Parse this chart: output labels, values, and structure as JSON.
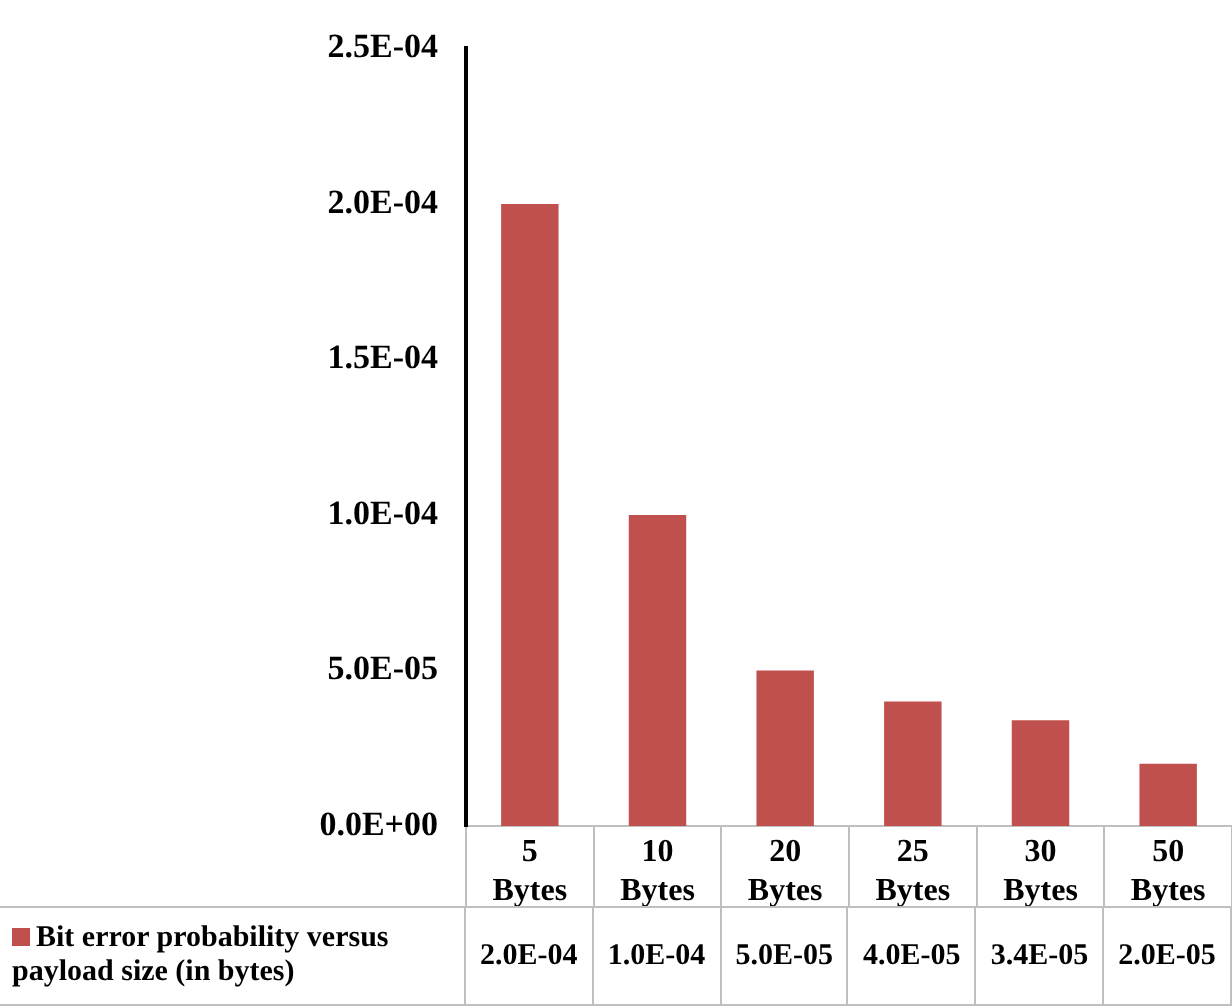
{
  "chart_data": {
    "type": "bar",
    "categories": [
      "5 Bytes",
      "10 Bytes",
      "20 Bytes",
      "25 Bytes",
      "30 Bytes",
      "50 Bytes"
    ],
    "series": [
      {
        "name": "Bit error probability versus payload size (in bytes)",
        "color": "#c0504d",
        "values": [
          0.0002,
          0.0001,
          5e-05,
          4e-05,
          3.4e-05,
          2e-05
        ],
        "value_labels": [
          "2.0E-04",
          "1.0E-04",
          "5.0E-05",
          "4.0E-05",
          "3.4E-05",
          "2.0E-05"
        ]
      }
    ],
    "ylim": [
      0,
      0.00025
    ],
    "yticks": [
      {
        "value": 0,
        "label": "0.0E+00"
      },
      {
        "value": 5e-05,
        "label": "5.0E-05"
      },
      {
        "value": 0.0001,
        "label": "1.0E-04"
      },
      {
        "value": 0.00015,
        "label": "1.5E-04"
      },
      {
        "value": 0.0002,
        "label": "2.0E-04"
      },
      {
        "value": 0.00025,
        "label": "2.5E-04"
      }
    ],
    "grid": false,
    "legend": "bottom"
  }
}
